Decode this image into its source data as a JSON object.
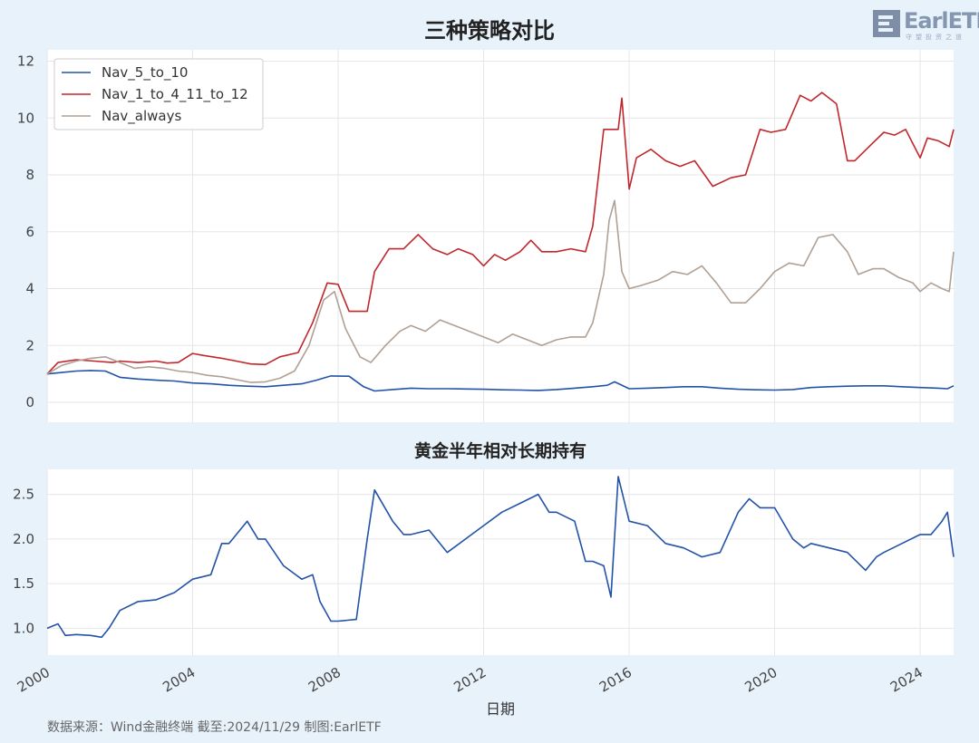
{
  "header": {
    "title": "三种策略对比",
    "logo_text": "EarlETF",
    "logo_subtext": "守望投资之道"
  },
  "footer": {
    "source": "数据来源：Wind金融终端 截至:2024/11/29 制图:EarlETF"
  },
  "colors": {
    "page_bg": "#e8f2fb",
    "plot_bg": "#ffffff",
    "grid": "#e6e6e6",
    "nav_5_to_10": "#2352a8",
    "nav_1_to_4_11_to_12": "#c0272d",
    "nav_always": "#b0a093",
    "gold_ratio": "#2352a8"
  },
  "chart_data": [
    {
      "type": "line",
      "title": "",
      "xlabel": "",
      "ylabel": "",
      "xlim": [
        2000.0,
        2024.92
      ],
      "ylim": [
        -0.7,
        12.4
      ],
      "yticks": [
        0,
        2,
        4,
        6,
        8,
        10,
        12
      ],
      "grid": true,
      "legend": "top-left",
      "series": [
        {
          "name": "Nav_5_to_10",
          "color": "#2352a8",
          "x": [
            2000.0,
            2000.4,
            2000.8,
            2001.2,
            2001.6,
            2002.0,
            2002.5,
            2003.0,
            2003.5,
            2004.0,
            2004.5,
            2005.0,
            2005.5,
            2006.0,
            2006.5,
            2007.0,
            2007.4,
            2007.8,
            2008.3,
            2008.7,
            2009.0,
            2009.5,
            2010.0,
            2010.5,
            2011.0,
            2011.5,
            2012.0,
            2012.5,
            2013.0,
            2013.5,
            2014.0,
            2014.5,
            2015.0,
            2015.4,
            2015.6,
            2016.0,
            2016.5,
            2017.0,
            2017.5,
            2018.0,
            2018.5,
            2019.0,
            2019.5,
            2020.0,
            2020.5,
            2021.0,
            2021.5,
            2022.0,
            2022.5,
            2023.0,
            2023.5,
            2024.0,
            2024.5,
            2024.75,
            2024.92
          ],
          "values": [
            1.0,
            1.05,
            1.1,
            1.12,
            1.1,
            0.88,
            0.82,
            0.78,
            0.75,
            0.68,
            0.65,
            0.6,
            0.57,
            0.55,
            0.6,
            0.65,
            0.78,
            0.93,
            0.92,
            0.55,
            0.4,
            0.45,
            0.5,
            0.48,
            0.48,
            0.47,
            0.46,
            0.44,
            0.43,
            0.42,
            0.45,
            0.5,
            0.55,
            0.6,
            0.72,
            0.48,
            0.5,
            0.52,
            0.55,
            0.55,
            0.5,
            0.46,
            0.44,
            0.43,
            0.45,
            0.52,
            0.55,
            0.57,
            0.58,
            0.58,
            0.55,
            0.52,
            0.5,
            0.48,
            0.58
          ]
        },
        {
          "name": "Nav_1_to_4_11_to_12",
          "color": "#c0272d",
          "x": [
            2000.0,
            2000.3,
            2000.8,
            2001.3,
            2001.8,
            2002.0,
            2002.5,
            2003.0,
            2003.3,
            2003.6,
            2004.0,
            2004.3,
            2004.8,
            2005.2,
            2005.6,
            2006.0,
            2006.4,
            2006.9,
            2007.3,
            2007.7,
            2008.0,
            2008.3,
            2008.8,
            2009.0,
            2009.4,
            2009.8,
            2010.2,
            2010.6,
            2011.0,
            2011.3,
            2011.7,
            2012.0,
            2012.3,
            2012.6,
            2013.0,
            2013.3,
            2013.6,
            2014.0,
            2014.4,
            2014.8,
            2015.0,
            2015.3,
            2015.7,
            2015.8,
            2016.0,
            2016.2,
            2016.6,
            2017.0,
            2017.4,
            2017.8,
            2018.3,
            2018.8,
            2019.2,
            2019.6,
            2019.9,
            2020.3,
            2020.7,
            2021.0,
            2021.3,
            2021.7,
            2022.0,
            2022.2,
            2022.6,
            2023.0,
            2023.3,
            2023.6,
            2024.0,
            2024.2,
            2024.5,
            2024.8,
            2024.92
          ],
          "values": [
            1.0,
            1.4,
            1.5,
            1.45,
            1.4,
            1.45,
            1.4,
            1.45,
            1.38,
            1.4,
            1.72,
            1.65,
            1.55,
            1.45,
            1.35,
            1.33,
            1.6,
            1.75,
            2.8,
            4.2,
            4.15,
            3.2,
            3.2,
            4.6,
            5.4,
            5.4,
            5.9,
            5.4,
            5.2,
            5.4,
            5.2,
            4.8,
            5.2,
            5.0,
            5.3,
            5.7,
            5.3,
            5.3,
            5.4,
            5.3,
            6.2,
            9.6,
            9.6,
            10.7,
            7.5,
            8.6,
            8.9,
            8.5,
            8.3,
            8.5,
            7.6,
            7.9,
            8.0,
            9.6,
            9.5,
            9.6,
            10.8,
            10.6,
            10.9,
            10.5,
            8.5,
            8.5,
            9.0,
            9.5,
            9.4,
            9.6,
            8.6,
            9.3,
            9.2,
            9.0,
            9.6
          ]
        },
        {
          "name": "Nav_always",
          "color": "#b0a093",
          "x": [
            2000.0,
            2000.4,
            2000.8,
            2001.2,
            2001.6,
            2002.0,
            2002.4,
            2002.8,
            2003.2,
            2003.6,
            2004.0,
            2004.4,
            2004.8,
            2005.2,
            2005.6,
            2006.0,
            2006.4,
            2006.8,
            2007.2,
            2007.6,
            2007.9,
            2008.2,
            2008.6,
            2008.9,
            2009.3,
            2009.7,
            2010.0,
            2010.4,
            2010.8,
            2011.2,
            2011.6,
            2012.0,
            2012.4,
            2012.8,
            2013.2,
            2013.6,
            2014.0,
            2014.4,
            2014.8,
            2015.0,
            2015.3,
            2015.45,
            2015.6,
            2015.8,
            2016.0,
            2016.3,
            2016.8,
            2017.2,
            2017.6,
            2018.0,
            2018.4,
            2018.8,
            2019.2,
            2019.6,
            2020.0,
            2020.4,
            2020.8,
            2021.2,
            2021.6,
            2022.0,
            2022.3,
            2022.7,
            2023.0,
            2023.4,
            2023.8,
            2024.0,
            2024.3,
            2024.6,
            2024.8,
            2024.92
          ],
          "values": [
            1.0,
            1.3,
            1.45,
            1.55,
            1.6,
            1.4,
            1.2,
            1.25,
            1.2,
            1.1,
            1.05,
            0.95,
            0.9,
            0.8,
            0.7,
            0.72,
            0.85,
            1.1,
            2.0,
            3.6,
            3.9,
            2.6,
            1.6,
            1.4,
            2.0,
            2.5,
            2.7,
            2.5,
            2.9,
            2.7,
            2.5,
            2.3,
            2.1,
            2.4,
            2.2,
            2.0,
            2.2,
            2.3,
            2.3,
            2.8,
            4.5,
            6.4,
            7.1,
            4.6,
            4.0,
            4.1,
            4.3,
            4.6,
            4.5,
            4.8,
            4.2,
            3.5,
            3.5,
            4.0,
            4.6,
            4.9,
            4.8,
            5.8,
            5.9,
            5.3,
            4.5,
            4.7,
            4.7,
            4.4,
            4.2,
            3.9,
            4.2,
            4.0,
            3.9,
            5.3
          ]
        }
      ]
    },
    {
      "type": "line",
      "title": "黄金半年相对长期持有",
      "xlabel": "日期",
      "ylabel": "",
      "xlim": [
        2000.0,
        2024.92
      ],
      "ylim": [
        0.7,
        2.78
      ],
      "yticks": [
        1.0,
        1.5,
        2.0,
        2.5
      ],
      "xticks": [
        2000,
        2004,
        2008,
        2012,
        2016,
        2020,
        2024
      ],
      "xtick_labels": [
        "2000",
        "2004",
        "2008",
        "2012",
        "2016",
        "2020",
        "2024"
      ],
      "grid": true,
      "series": [
        {
          "color": "#2352a8",
          "x": [
            2000.0,
            2000.3,
            2000.5,
            2000.8,
            2001.2,
            2001.5,
            2001.7,
            2002.0,
            2002.5,
            2003.0,
            2003.5,
            2004.0,
            2004.5,
            2004.8,
            2005.0,
            2005.5,
            2005.8,
            2006.0,
            2006.5,
            2007.0,
            2007.3,
            2007.5,
            2007.8,
            2008.0,
            2008.5,
            2008.8,
            2009.0,
            2009.5,
            2009.8,
            2010.0,
            2010.5,
            2011.0,
            2011.5,
            2012.0,
            2012.5,
            2013.0,
            2013.5,
            2013.8,
            2014.0,
            2014.5,
            2014.8,
            2015.0,
            2015.3,
            2015.5,
            2015.7,
            2016.0,
            2016.5,
            2017.0,
            2017.5,
            2018.0,
            2018.5,
            2019.0,
            2019.3,
            2019.6,
            2020.0,
            2020.5,
            2020.8,
            2021.0,
            2021.5,
            2022.0,
            2022.5,
            2022.8,
            2023.0,
            2023.5,
            2024.0,
            2024.3,
            2024.6,
            2024.75,
            2024.92
          ],
          "values": [
            1.0,
            1.05,
            0.92,
            0.93,
            0.92,
            0.9,
            1.0,
            1.2,
            1.3,
            1.32,
            1.4,
            1.55,
            1.6,
            1.95,
            1.95,
            2.2,
            2.0,
            2.0,
            1.7,
            1.55,
            1.6,
            1.3,
            1.08,
            1.08,
            1.1,
            2.0,
            2.55,
            2.2,
            2.05,
            2.05,
            2.1,
            1.85,
            2.0,
            2.15,
            2.3,
            2.4,
            2.5,
            2.3,
            2.3,
            2.2,
            1.75,
            1.75,
            1.7,
            1.35,
            2.7,
            2.2,
            2.15,
            1.95,
            1.9,
            1.8,
            1.85,
            2.3,
            2.45,
            2.35,
            2.35,
            2.0,
            1.9,
            1.95,
            1.9,
            1.85,
            1.65,
            1.8,
            1.85,
            1.95,
            2.05,
            2.05,
            2.2,
            2.3,
            1.8
          ]
        }
      ]
    }
  ]
}
